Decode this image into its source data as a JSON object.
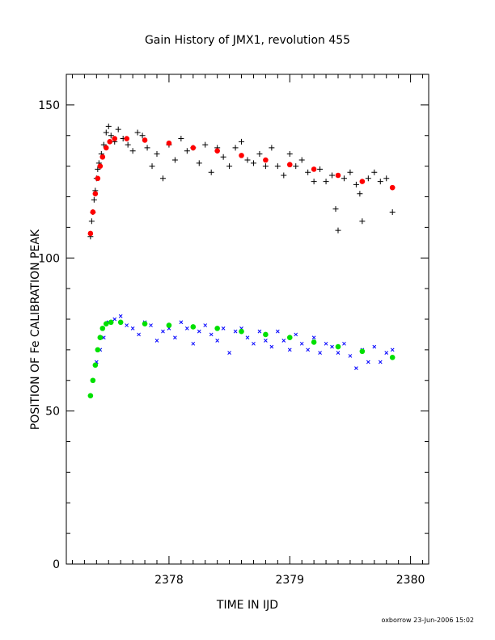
{
  "chart_data": {
    "type": "scatter",
    "title": "Gain History of JMX1, revolution 455",
    "xlabel": "TIME IN IJD",
    "ylabel": "POSITION OF Fe CALIBRATION PEAK",
    "xlim": [
      2377.15,
      2380.15
    ],
    "ylim": [
      0,
      160
    ],
    "x_ticks": [
      2378,
      2379,
      2380
    ],
    "x_tick_labels": [
      "2378",
      "2379",
      "2380"
    ],
    "y_ticks": [
      0,
      50,
      100,
      150
    ],
    "y_tick_labels": [
      "0",
      "50",
      "100",
      "150"
    ],
    "grid": false,
    "series": [
      {
        "marker": "plus",
        "color": "#000000",
        "points": [
          [
            2377.35,
            107
          ],
          [
            2377.36,
            112
          ],
          [
            2377.37,
            115
          ],
          [
            2377.38,
            119
          ],
          [
            2377.39,
            122
          ],
          [
            2377.4,
            126
          ],
          [
            2377.41,
            129
          ],
          [
            2377.42,
            131
          ],
          [
            2377.44,
            134
          ],
          [
            2377.46,
            137
          ],
          [
            2377.48,
            141
          ],
          [
            2377.5,
            143
          ],
          [
            2377.52,
            140
          ],
          [
            2377.55,
            138
          ],
          [
            2377.58,
            142
          ],
          [
            2377.62,
            139
          ],
          [
            2377.66,
            137
          ],
          [
            2377.7,
            135
          ],
          [
            2377.74,
            141
          ],
          [
            2377.78,
            140
          ],
          [
            2377.82,
            136
          ],
          [
            2377.86,
            130
          ],
          [
            2377.9,
            134
          ],
          [
            2377.95,
            126
          ],
          [
            2378.0,
            137
          ],
          [
            2378.05,
            132
          ],
          [
            2378.1,
            139
          ],
          [
            2378.15,
            135
          ],
          [
            2378.2,
            136
          ],
          [
            2378.25,
            131
          ],
          [
            2378.3,
            137
          ],
          [
            2378.35,
            128
          ],
          [
            2378.4,
            136
          ],
          [
            2378.45,
            133
          ],
          [
            2378.5,
            130
          ],
          [
            2378.55,
            136
          ],
          [
            2378.6,
            138
          ],
          [
            2378.65,
            132
          ],
          [
            2378.7,
            131
          ],
          [
            2378.75,
            134
          ],
          [
            2378.8,
            130
          ],
          [
            2378.85,
            136
          ],
          [
            2378.9,
            130
          ],
          [
            2378.95,
            127
          ],
          [
            2379.0,
            134
          ],
          [
            2379.05,
            130
          ],
          [
            2379.1,
            132
          ],
          [
            2379.15,
            128
          ],
          [
            2379.2,
            125
          ],
          [
            2379.25,
            129
          ],
          [
            2379.3,
            125
          ],
          [
            2379.35,
            127
          ],
          [
            2379.38,
            116
          ],
          [
            2379.4,
            109
          ],
          [
            2379.45,
            126
          ],
          [
            2379.5,
            128
          ],
          [
            2379.55,
            124
          ],
          [
            2379.58,
            121
          ],
          [
            2379.6,
            112
          ],
          [
            2379.65,
            126
          ],
          [
            2379.7,
            128
          ],
          [
            2379.75,
            125
          ],
          [
            2379.8,
            126
          ],
          [
            2379.85,
            115
          ]
        ]
      },
      {
        "marker": "filled",
        "color": "#ff0000",
        "points": [
          [
            2377.35,
            108
          ],
          [
            2377.37,
            115
          ],
          [
            2377.39,
            121
          ],
          [
            2377.41,
            126
          ],
          [
            2377.43,
            130
          ],
          [
            2377.45,
            133
          ],
          [
            2377.48,
            136
          ],
          [
            2377.51,
            138
          ],
          [
            2377.55,
            139
          ],
          [
            2377.65,
            139
          ],
          [
            2377.8,
            138.5
          ],
          [
            2378.0,
            137.5
          ],
          [
            2378.2,
            136
          ],
          [
            2378.4,
            135
          ],
          [
            2378.6,
            133.5
          ],
          [
            2378.8,
            132
          ],
          [
            2379.0,
            130.5
          ],
          [
            2379.2,
            129
          ],
          [
            2379.4,
            127
          ],
          [
            2379.6,
            125
          ],
          [
            2379.85,
            123
          ]
        ]
      },
      {
        "marker": "cross",
        "color": "#0000ff",
        "points": [
          [
            2377.4,
            66
          ],
          [
            2377.43,
            70
          ],
          [
            2377.46,
            74
          ],
          [
            2377.5,
            79
          ],
          [
            2377.55,
            80
          ],
          [
            2377.6,
            81
          ],
          [
            2377.65,
            78
          ],
          [
            2377.7,
            77
          ],
          [
            2377.75,
            75
          ],
          [
            2377.8,
            79
          ],
          [
            2377.85,
            78
          ],
          [
            2377.9,
            73
          ],
          [
            2377.95,
            76
          ],
          [
            2378.0,
            77
          ],
          [
            2378.05,
            74
          ],
          [
            2378.1,
            79
          ],
          [
            2378.15,
            77
          ],
          [
            2378.2,
            72
          ],
          [
            2378.25,
            76
          ],
          [
            2378.3,
            78
          ],
          [
            2378.35,
            75
          ],
          [
            2378.4,
            73
          ],
          [
            2378.45,
            77
          ],
          [
            2378.5,
            69
          ],
          [
            2378.55,
            76
          ],
          [
            2378.6,
            77
          ],
          [
            2378.65,
            74
          ],
          [
            2378.7,
            72
          ],
          [
            2378.75,
            76
          ],
          [
            2378.8,
            73
          ],
          [
            2378.85,
            71
          ],
          [
            2378.9,
            76
          ],
          [
            2378.95,
            73
          ],
          [
            2379.0,
            70
          ],
          [
            2379.05,
            75
          ],
          [
            2379.1,
            72
          ],
          [
            2379.15,
            70
          ],
          [
            2379.2,
            74
          ],
          [
            2379.25,
            69
          ],
          [
            2379.3,
            72
          ],
          [
            2379.35,
            71
          ],
          [
            2379.4,
            69
          ],
          [
            2379.45,
            72
          ],
          [
            2379.5,
            68
          ],
          [
            2379.55,
            64
          ],
          [
            2379.6,
            70
          ],
          [
            2379.65,
            66
          ],
          [
            2379.7,
            71
          ],
          [
            2379.75,
            66
          ],
          [
            2379.8,
            69
          ],
          [
            2379.85,
            70
          ]
        ]
      },
      {
        "marker": "filled",
        "color": "#00e000",
        "points": [
          [
            2377.35,
            55
          ],
          [
            2377.37,
            60
          ],
          [
            2377.39,
            65
          ],
          [
            2377.41,
            70
          ],
          [
            2377.43,
            74
          ],
          [
            2377.45,
            77
          ],
          [
            2377.48,
            78.5
          ],
          [
            2377.52,
            79
          ],
          [
            2377.6,
            79
          ],
          [
            2377.8,
            78.5
          ],
          [
            2378.0,
            78
          ],
          [
            2378.2,
            77.5
          ],
          [
            2378.4,
            77
          ],
          [
            2378.6,
            76
          ],
          [
            2378.8,
            75
          ],
          [
            2379.0,
            74
          ],
          [
            2379.2,
            72.5
          ],
          [
            2379.4,
            71
          ],
          [
            2379.6,
            69.5
          ],
          [
            2379.85,
            67.5
          ]
        ]
      }
    ]
  },
  "footer": {
    "stamp": "oxborrow 23-Jun-2006 15:02"
  }
}
